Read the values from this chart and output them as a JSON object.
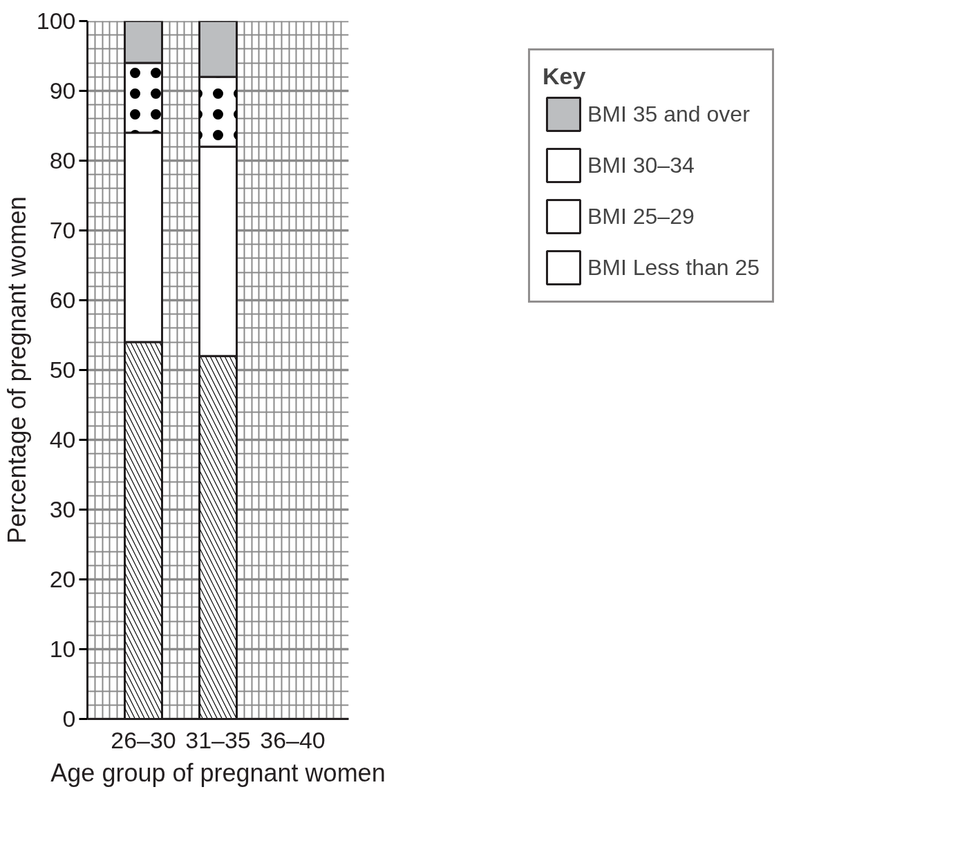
{
  "chart_data": {
    "type": "bar",
    "stacked": true,
    "categories": [
      "26–30",
      "31–35",
      "36–40"
    ],
    "xlabel": "Age group of pregnant women",
    "ylabel": "Percentage of pregnant women",
    "legend_title": "Key",
    "series": [
      {
        "name": "BMI Less than 25",
        "color": "#ffffff",
        "values": [
          54,
          52,
          null
        ]
      },
      {
        "name": "BMI 25–29",
        "color": "#ffffff",
        "values": [
          30,
          30,
          null
        ]
      },
      {
        "name": "BMI 30–34",
        "color": "#ffffff",
        "values": [
          10,
          10,
          null
        ]
      },
      {
        "name": "BMI 35 and over",
        "color": "#bcbec0",
        "values": [
          6,
          8,
          null
        ]
      }
    ],
    "ylim": [
      0,
      100
    ],
    "yticks": [
      0,
      10,
      20,
      30,
      40,
      50,
      60,
      70,
      80,
      90,
      100
    ],
    "grid": true,
    "legend": "right"
  }
}
